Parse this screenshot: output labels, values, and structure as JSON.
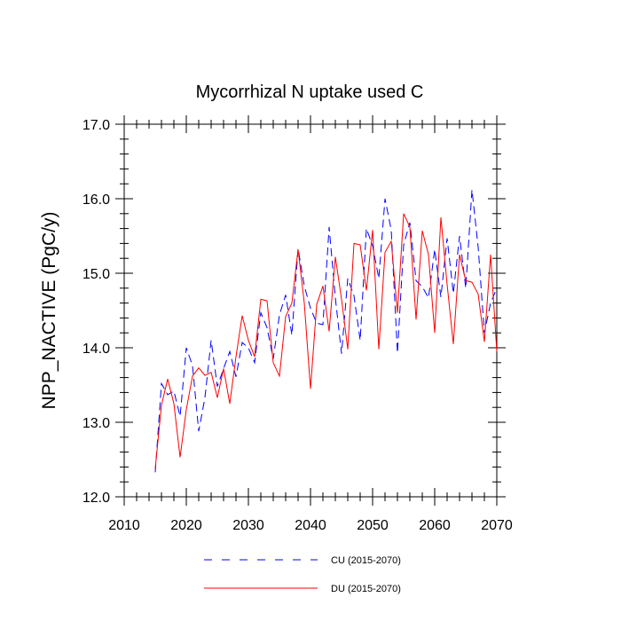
{
  "chart_data": {
    "type": "line",
    "title": "Mycorrhizal N uptake used C",
    "xlabel": "",
    "ylabel": "NPP_NACTIVE  (PgC/y)",
    "xlim": [
      2010,
      2070
    ],
    "ylim": [
      12.0,
      17.0
    ],
    "xticks": [
      2010,
      2020,
      2030,
      2040,
      2050,
      2060,
      2070
    ],
    "xtick_labels": [
      "2010",
      "2020",
      "2030",
      "2040",
      "2050",
      "2060",
      "2070"
    ],
    "yticks": [
      12.0,
      13.0,
      14.0,
      15.0,
      16.0,
      17.0
    ],
    "ytick_labels": [
      "12.0",
      "13.0",
      "14.0",
      "15.0",
      "16.0",
      "17.0"
    ],
    "grid": false,
    "legend_position": "bottom",
    "x": [
      2015,
      2016,
      2017,
      2018,
      2019,
      2020,
      2021,
      2022,
      2023,
      2024,
      2025,
      2026,
      2027,
      2028,
      2029,
      2030,
      2031,
      2032,
      2033,
      2034,
      2035,
      2036,
      2037,
      2038,
      2039,
      2040,
      2041,
      2042,
      2043,
      2044,
      2045,
      2046,
      2047,
      2048,
      2049,
      2050,
      2051,
      2052,
      2053,
      2054,
      2055,
      2056,
      2057,
      2058,
      2059,
      2060,
      2061,
      2062,
      2063,
      2064,
      2065,
      2066,
      2067,
      2068,
      2069,
      2070
    ],
    "series": [
      {
        "name": "CU (2015-2070)",
        "color": "#0000ff",
        "style": "dashed",
        "values": [
          12.33,
          13.52,
          13.37,
          13.42,
          13.08,
          14.0,
          13.76,
          12.88,
          13.33,
          14.1,
          13.48,
          13.72,
          13.95,
          13.61,
          14.07,
          14.0,
          13.8,
          14.47,
          14.27,
          13.85,
          14.44,
          14.71,
          14.17,
          15.33,
          14.83,
          14.53,
          14.33,
          14.31,
          15.62,
          14.67,
          13.92,
          14.93,
          14.7,
          14.1,
          15.6,
          15.37,
          14.93,
          16.0,
          15.58,
          13.93,
          15.38,
          15.68,
          14.9,
          14.82,
          14.67,
          15.32,
          14.68,
          15.47,
          14.73,
          15.5,
          14.8,
          16.12,
          15.35,
          14.2,
          14.6,
          14.8
        ]
      },
      {
        "name": "DU (2015-2070)",
        "color": "#ff0000",
        "style": "solid",
        "values": [
          12.38,
          13.23,
          13.58,
          13.25,
          12.53,
          13.17,
          13.62,
          13.73,
          13.63,
          13.67,
          13.33,
          13.72,
          13.25,
          13.88,
          14.43,
          14.1,
          13.88,
          14.65,
          14.63,
          13.8,
          13.62,
          14.42,
          14.6,
          15.32,
          14.6,
          13.45,
          14.58,
          14.83,
          14.22,
          15.22,
          14.65,
          13.98,
          15.4,
          15.38,
          14.77,
          15.58,
          13.98,
          15.28,
          15.43,
          14.47,
          15.8,
          15.62,
          14.38,
          15.57,
          15.25,
          14.2,
          15.75,
          14.85,
          14.05,
          15.25,
          14.9,
          14.88,
          14.72,
          14.08,
          15.25,
          13.95
        ]
      }
    ]
  }
}
